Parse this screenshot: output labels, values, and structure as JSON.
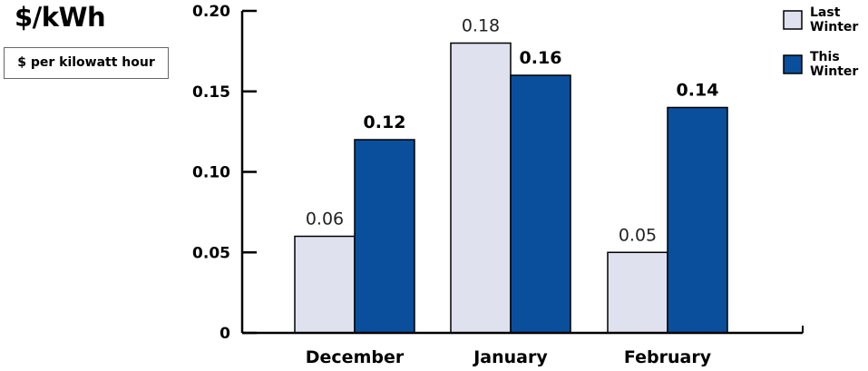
{
  "header": {
    "unit_title": "$/kWh",
    "unit_description": "$ per kilowatt hour"
  },
  "colors": {
    "last_winter": "#dfe1ef",
    "this_winter": "#0a4f9c",
    "outline": "#000000"
  },
  "chart_data": {
    "type": "bar",
    "title": "",
    "xlabel": "",
    "ylabel": "$/kWh",
    "categories": [
      "December",
      "January",
      "February"
    ],
    "series": [
      {
        "name": "Last Winter",
        "values": [
          0.06,
          0.18,
          0.05
        ],
        "labels": [
          "0.06",
          "0.18",
          "0.05"
        ]
      },
      {
        "name": "This Winter",
        "values": [
          0.12,
          0.16,
          0.14
        ],
        "labels": [
          "0.12",
          "0.16",
          "0.14"
        ]
      }
    ],
    "ylim": [
      0,
      0.2
    ],
    "yticks": [
      0,
      0.05,
      0.1,
      0.15,
      0.2
    ],
    "ytick_labels": [
      "0",
      "0.05",
      "0.10",
      "0.15",
      "0.20"
    ],
    "legend": {
      "position": "top-right",
      "entries": [
        [
          "Last",
          "Winter"
        ],
        [
          "This",
          "Winter"
        ]
      ]
    },
    "grid": false
  }
}
